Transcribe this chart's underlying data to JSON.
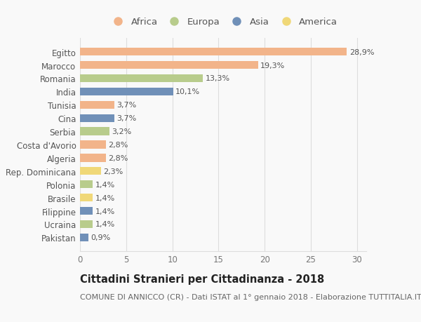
{
  "countries": [
    "Egitto",
    "Marocco",
    "Romania",
    "India",
    "Tunisia",
    "Cina",
    "Serbia",
    "Costa d'Avorio",
    "Algeria",
    "Rep. Dominicana",
    "Polonia",
    "Brasile",
    "Filippine",
    "Ucraina",
    "Pakistan"
  ],
  "values": [
    28.9,
    19.3,
    13.3,
    10.1,
    3.7,
    3.7,
    3.2,
    2.8,
    2.8,
    2.3,
    1.4,
    1.4,
    1.4,
    1.4,
    0.9
  ],
  "labels": [
    "28,9%",
    "19,3%",
    "13,3%",
    "10,1%",
    "3,7%",
    "3,7%",
    "3,2%",
    "2,8%",
    "2,8%",
    "2,3%",
    "1,4%",
    "1,4%",
    "1,4%",
    "1,4%",
    "0,9%"
  ],
  "continents": [
    "Africa",
    "Africa",
    "Europa",
    "Asia",
    "Africa",
    "Asia",
    "Europa",
    "Africa",
    "Africa",
    "America",
    "Europa",
    "America",
    "Asia",
    "Europa",
    "Asia"
  ],
  "colors": {
    "Africa": "#F2B48A",
    "Europa": "#B8CC8C",
    "Asia": "#7090B8",
    "America": "#F0D878"
  },
  "legend_order": [
    "Africa",
    "Europa",
    "Asia",
    "America"
  ],
  "title": "Cittadini Stranieri per Cittadinanza - 2018",
  "subtitle": "COMUNE DI ANNICCO (CR) - Dati ISTAT al 1° gennaio 2018 - Elaborazione TUTTITALIA.IT",
  "xlim": [
    0,
    31
  ],
  "xticks": [
    0,
    5,
    10,
    15,
    20,
    25,
    30
  ],
  "background_color": "#f9f9f9",
  "grid_color": "#dddddd",
  "title_fontsize": 10.5,
  "subtitle_fontsize": 8,
  "bar_label_fontsize": 8,
  "ytick_fontsize": 8.5,
  "xtick_fontsize": 8.5,
  "legend_fontsize": 9.5
}
